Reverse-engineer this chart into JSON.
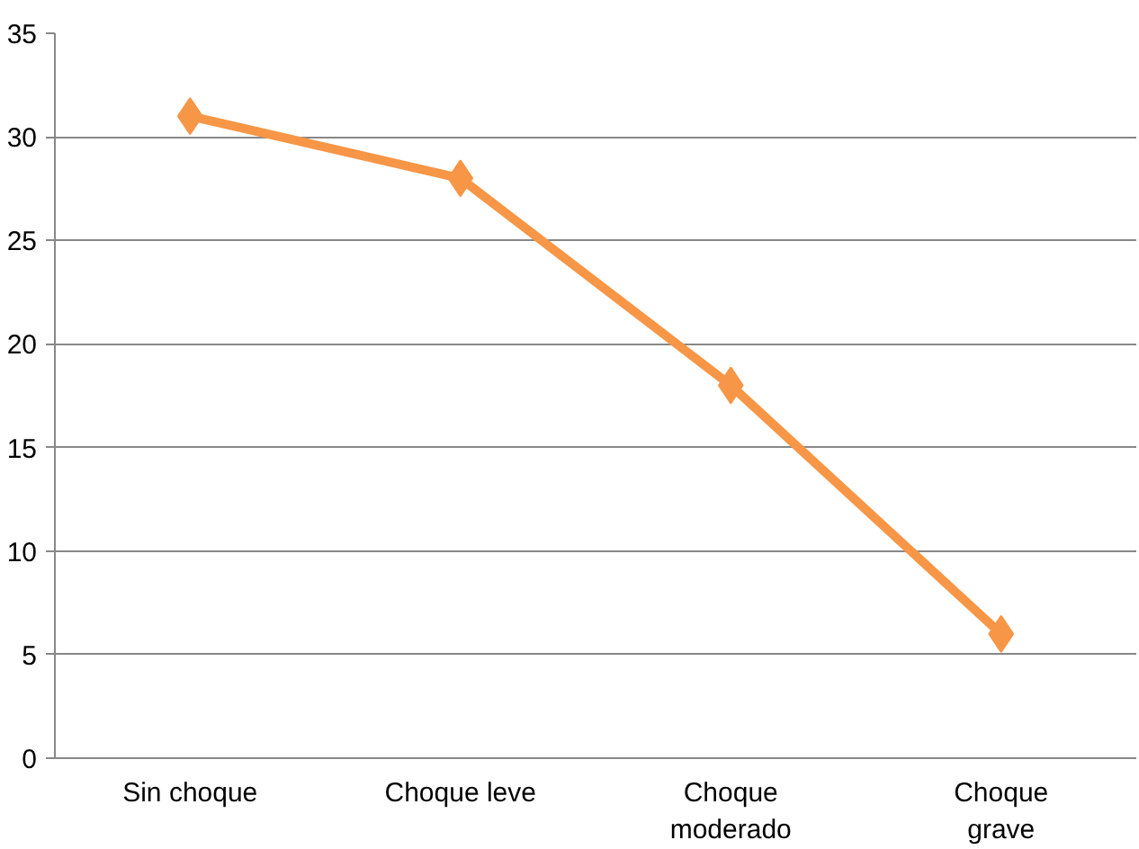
{
  "chart_data": {
    "type": "line",
    "categories": [
      "Sin choque",
      "Choque leve",
      "Choque moderado",
      "Choque grave"
    ],
    "series": [
      {
        "color": "#f79646",
        "values": [
          31,
          28,
          18,
          6
        ]
      }
    ],
    "ylim": [
      0,
      35
    ],
    "yticks": [
      0,
      5,
      10,
      15,
      20,
      25,
      30,
      35
    ],
    "grid": "y",
    "marker": "diamond",
    "line_style": "solid"
  }
}
